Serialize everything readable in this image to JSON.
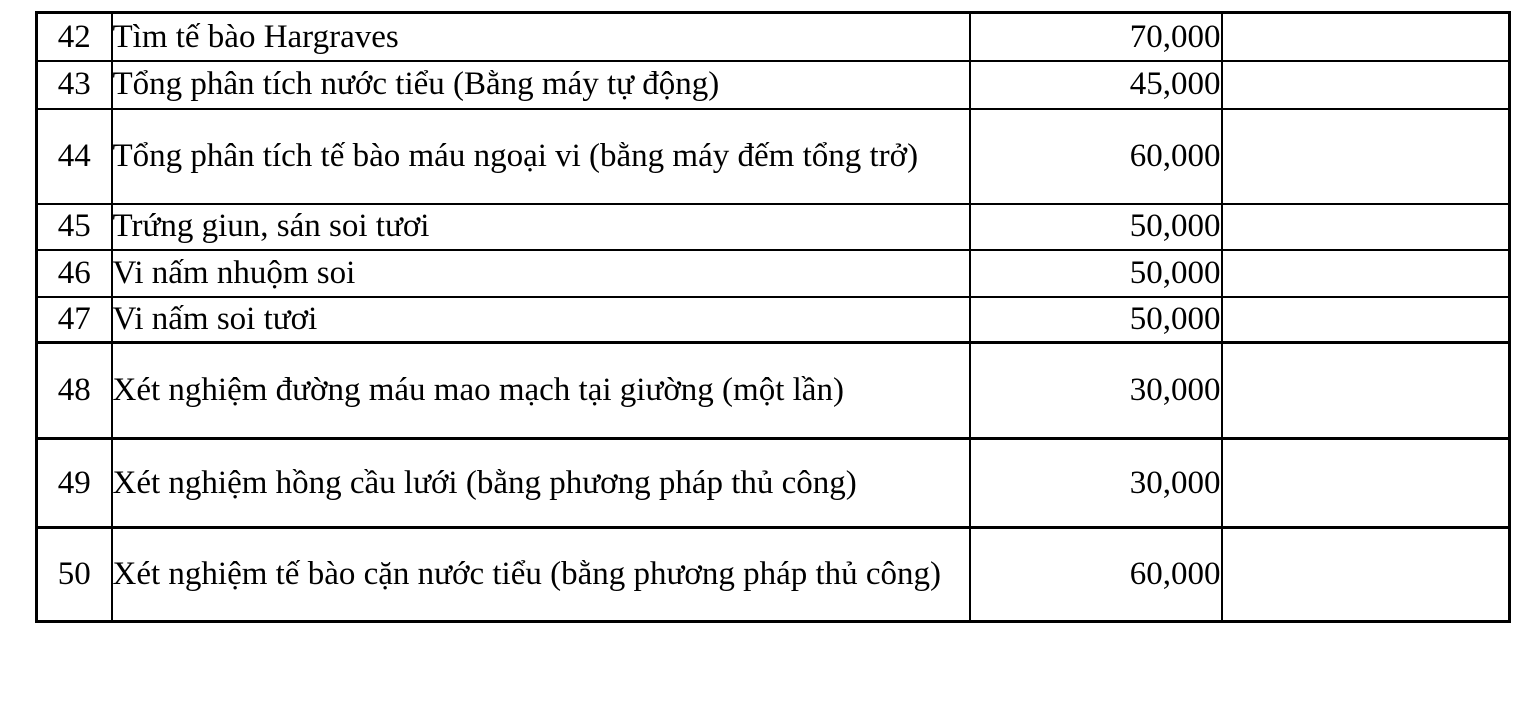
{
  "colors": {
    "background": "#ffffff",
    "text": "#000000",
    "border": "#000000"
  },
  "table": {
    "rows": [
      {
        "no": "42",
        "name": "Tìm tế bào Hargraves",
        "price": "70,000",
        "note": ""
      },
      {
        "no": "43",
        "name": "Tổng phân tích nước tiểu (Bằng máy tự động)",
        "price": "45,000",
        "note": ""
      },
      {
        "no": "44",
        "name": "Tổng phân tích tế bào máu ngoại vi (bằng máy đếm tổng trở)",
        "price": "60,000",
        "note": ""
      },
      {
        "no": "45",
        "name": "Trứng giun, sán soi tươi",
        "price": "50,000",
        "note": ""
      },
      {
        "no": "46",
        "name": "Vi nấm nhuộm soi",
        "price": "50,000",
        "note": ""
      },
      {
        "no": "47",
        "name": "Vi nấm soi tươi",
        "price": "50,000",
        "note": ""
      },
      {
        "no": "48",
        "name": "Xét nghiệm đường máu mao mạch tại giường (một lần)",
        "price": "30,000",
        "note": ""
      },
      {
        "no": "49",
        "name": "Xét nghiệm hồng cầu lưới (bằng phương pháp thủ công)",
        "price": "30,000",
        "note": ""
      },
      {
        "no": "50",
        "name": "Xét nghiệm tế bào cặn nước tiểu (bằng phương pháp thủ công)",
        "price": "60,000",
        "note": ""
      }
    ]
  }
}
